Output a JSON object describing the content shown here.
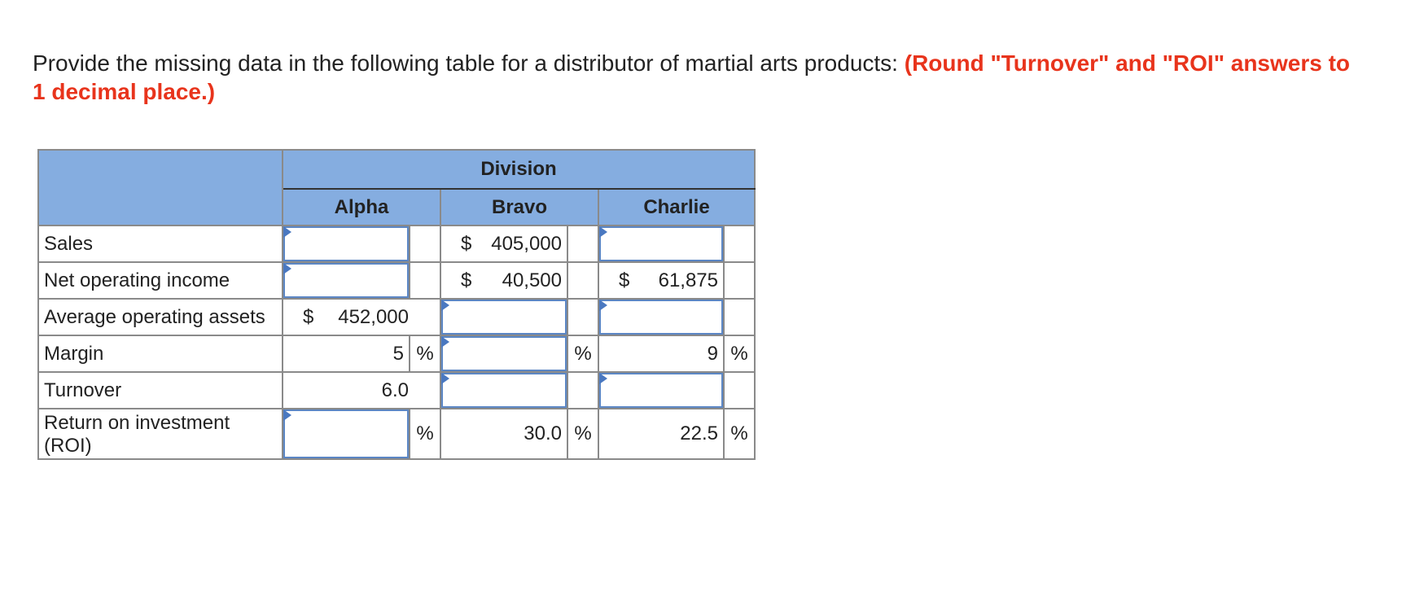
{
  "prompt": {
    "text": "Provide the missing data in the following table for a distributor of martial arts products:",
    "hint": "(Round \"Turnover\" and \"ROI\" answers to 1 decimal place.)"
  },
  "table": {
    "division_header": "Division",
    "columns": {
      "alpha": "Alpha",
      "bravo": "Bravo",
      "charlie": "Charlie"
    },
    "rows": {
      "sales": {
        "label": "Sales",
        "alpha": "",
        "bravo_currency": "$",
        "bravo": "405,000",
        "charlie": ""
      },
      "noi": {
        "label": "Net operating income",
        "alpha": "",
        "bravo_currency": "$",
        "bravo": "40,500",
        "charlie_currency": "$",
        "charlie": "61,875"
      },
      "assets": {
        "label": "Average operating assets",
        "alpha_currency": "$",
        "alpha": "452,000",
        "bravo": "",
        "charlie": ""
      },
      "margin": {
        "label": "Margin",
        "alpha": "5",
        "alpha_unit": "%",
        "bravo": "",
        "bravo_unit": "%",
        "charlie": "9",
        "charlie_unit": "%"
      },
      "turnover": {
        "label": "Turnover",
        "alpha": "6.0",
        "bravo": "",
        "charlie": ""
      },
      "roi": {
        "label_line1": "Return on investment",
        "label_line2": "(ROI)",
        "alpha": "",
        "alpha_unit": "%",
        "bravo": "30.0",
        "bravo_unit": "%",
        "charlie": "22.5",
        "charlie_unit": "%"
      }
    }
  },
  "colors": {
    "header_bg": "#85ade0",
    "hint": "#e8341c",
    "input_border": "#5b86c4",
    "input_marker": "#4a78c0"
  }
}
